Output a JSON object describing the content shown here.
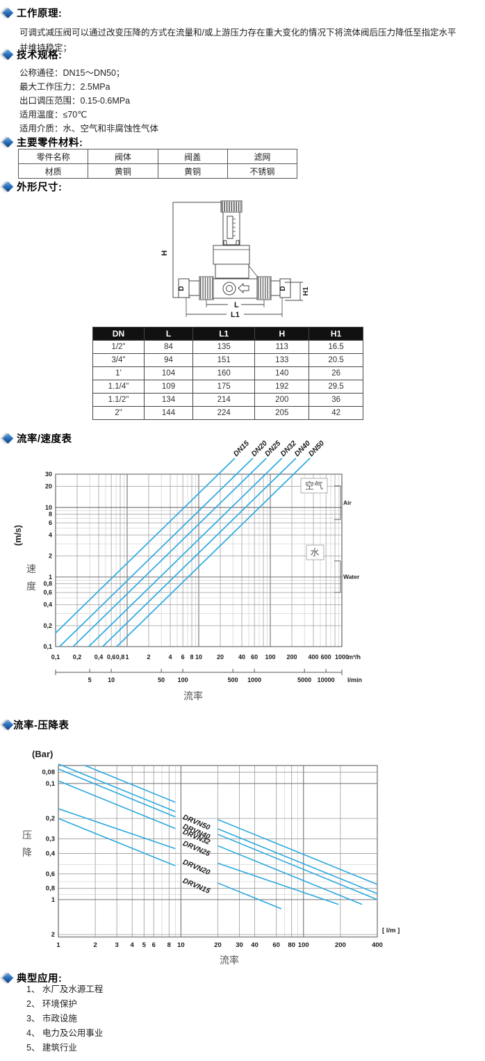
{
  "sections": {
    "working_principle": {
      "heading": "工作原理:",
      "lines": [
        "可调式减压阀可以通过改变压降的方式在流量和/或上游压力存在重大变化的情况下将流体阀后压力降低至指定水平",
        "并维持稳定；"
      ]
    },
    "specs": {
      "heading": "技术规格:",
      "items": [
        "公称通径：DN15～DN50；",
        "最大工作压力：2.5MPa",
        "出口调压范围：0.15-0.6MPa",
        "适用温度：≤70℃",
        "适用介质：水、空气和非腐蚀性气体"
      ]
    },
    "materials": {
      "heading": "主要零件材料:",
      "table": {
        "rows": [
          [
            "零件名称",
            "阀体",
            "阀盖",
            "滤网"
          ],
          [
            "材质",
            "黄铜",
            "黄铜",
            "不锈钢"
          ]
        ]
      }
    },
    "dimensions": {
      "heading": "外形尺寸:",
      "drawing_labels": {
        "h": "H",
        "d_left": "D",
        "d_right": "D",
        "h1": "H1",
        "l": "L",
        "l1": "L1"
      },
      "table": {
        "headers": [
          "DN",
          "L",
          "L1",
          "H",
          "H1"
        ],
        "rows": [
          [
            "1/2\"",
            "84",
            "135",
            "113",
            "16.5"
          ],
          [
            "3/4\"",
            "94",
            "151",
            "133",
            "20.5"
          ],
          [
            "1'",
            "104",
            "160",
            "140",
            "26"
          ],
          [
            "1.1/4\"",
            "109",
            "175",
            "192",
            "29.5"
          ],
          [
            "1.1/2\"",
            "134",
            "214",
            "200",
            "36"
          ],
          [
            "2\"",
            "144",
            "224",
            "205",
            "42"
          ]
        ]
      }
    },
    "applications": {
      "heading": "典型应用:",
      "items": [
        "1、 水厂及水源工程",
        "2、 环境保护",
        "3、 市政设施",
        "4、 电力及公用事业",
        "5、 建筑行业"
      ]
    }
  },
  "chart_data": [
    {
      "type": "line",
      "title": "流率/速度表",
      "xlabel": "流率",
      "ylabel_chars": [
        "速",
        "度"
      ],
      "y_unit": "(m/s)",
      "x_unit": "m³/h",
      "x_scale": "log",
      "y_scale": "log",
      "xlim": [
        0.1,
        1000
      ],
      "ylim": [
        0.1,
        30
      ],
      "x_ticks": [
        [
          0.1,
          "0,1"
        ],
        [
          0.2,
          "0,2"
        ],
        [
          0.4,
          "0,4"
        ],
        [
          0.6,
          "0,6"
        ],
        [
          0.8,
          "0,8"
        ],
        [
          1,
          "1"
        ],
        [
          2,
          "2"
        ],
        [
          4,
          "4"
        ],
        [
          6,
          "6"
        ],
        [
          8,
          "8"
        ],
        [
          10,
          "10"
        ],
        [
          20,
          "20"
        ],
        [
          40,
          "40"
        ],
        [
          60,
          "60"
        ],
        [
          100,
          "100"
        ],
        [
          200,
          "200"
        ],
        [
          400,
          "400"
        ],
        [
          600,
          "600"
        ],
        [
          1000,
          "1000"
        ]
      ],
      "y_ticks": [
        [
          30,
          "30"
        ],
        [
          20,
          "20"
        ],
        [
          10,
          "10"
        ],
        [
          8,
          "8"
        ],
        [
          6,
          "6"
        ],
        [
          4,
          "4"
        ],
        [
          2,
          "2"
        ],
        [
          1,
          "1"
        ],
        [
          0.8,
          "0,8"
        ],
        [
          0.6,
          "0,6"
        ],
        [
          0.4,
          "0,4"
        ],
        [
          0.2,
          "0,2"
        ],
        [
          0.1,
          "0,1"
        ]
      ],
      "secondary_axis": {
        "unit": "l/min",
        "lmin_per_m3h": 16.667,
        "ticks": [
          [
            5,
            "5"
          ],
          [
            10,
            "10"
          ],
          [
            50,
            "50"
          ],
          [
            100,
            "100"
          ],
          [
            500,
            "500"
          ],
          [
            1000,
            "1000"
          ],
          [
            5000,
            "5000"
          ],
          [
            10000,
            "10000"
          ]
        ]
      },
      "series": [
        {
          "name": "DN15",
          "velocity_per_m3h": 1.57
        },
        {
          "name": "DN20",
          "velocity_per_m3h": 0.88
        },
        {
          "name": "DN25",
          "velocity_per_m3h": 0.57
        },
        {
          "name": "DN32",
          "velocity_per_m3h": 0.345
        },
        {
          "name": "DN40",
          "velocity_per_m3h": 0.22
        },
        {
          "name": "DN50",
          "velocity_per_m3h": 0.14
        }
      ],
      "annotations": [
        {
          "zh": "空气",
          "en": "Air",
          "velocity_range_mps": [
            6.7,
            20.4
          ]
        },
        {
          "zh": "水",
          "en": "Water",
          "velocity_range_mps": [
            0.6,
            1.7
          ]
        }
      ],
      "legend_position": "in-plot-top",
      "grid": true
    },
    {
      "type": "line",
      "title": "流率-压降表",
      "xlabel": "流率",
      "ylabel_chars": [
        "压",
        "降"
      ],
      "y_unit": "(Bar)",
      "x_unit": "[ l/m ]",
      "x_scale": "log",
      "y_scale": "log-inverted",
      "xlim": [
        1,
        400
      ],
      "ylim": [
        0.07,
        2.1
      ],
      "x_ticks": [
        [
          1,
          "1"
        ],
        [
          2,
          "2"
        ],
        [
          3,
          "3"
        ],
        [
          4,
          "4"
        ],
        [
          5,
          "5"
        ],
        [
          6,
          "6"
        ],
        [
          8,
          "8"
        ],
        [
          10,
          "10"
        ],
        [
          20,
          "20"
        ],
        [
          30,
          "30"
        ],
        [
          40,
          "40"
        ],
        [
          60,
          "60"
        ],
        [
          80,
          "80"
        ],
        [
          100,
          "100"
        ],
        [
          200,
          "200"
        ],
        [
          400,
          "400"
        ]
      ],
      "y_ticks": [
        [
          0.08,
          "0,08"
        ],
        [
          0.1,
          "0,1"
        ],
        [
          0.2,
          "0,2"
        ],
        [
          0.3,
          "0,3"
        ],
        [
          0.4,
          "0,4"
        ],
        [
          0.6,
          "0,6"
        ],
        [
          0.8,
          "0,8"
        ],
        [
          1,
          "1"
        ],
        [
          2,
          "2"
        ]
      ],
      "series": [
        {
          "name": "DRVN50",
          "start": [
            1.65,
            0.07
          ],
          "end": [
            400,
            0.74
          ]
        },
        {
          "name": "DRVN40",
          "start": [
            1,
            0.068
          ],
          "end": [
            400,
            0.89
          ]
        },
        {
          "name": "DRVN32",
          "start": [
            1,
            0.075
          ],
          "end": [
            400,
            1.0
          ]
        },
        {
          "name": "DRVN25",
          "start": [
            1,
            0.095
          ],
          "end": [
            300,
            1.1
          ]
        },
        {
          "name": "DRVN20",
          "start": [
            1,
            0.165
          ],
          "end": [
            193,
            1.1
          ]
        },
        {
          "name": "DRVN15",
          "start": [
            1,
            0.2
          ],
          "end": [
            66,
            1.2
          ]
        }
      ],
      "label_gap_x": [
        9,
        20
      ],
      "grid": true
    }
  ],
  "colors": {
    "accent_blue": "#2f74c0",
    "line_cyan": "#29a9e0",
    "grid_major": "#6f6f6f",
    "grid_minor": "#9a9a9a",
    "grid_faint": "#c2c2c2",
    "table_header_bg": "#111111",
    "chart_text": "#1a1a1a",
    "cjk_gray": "#555555"
  }
}
